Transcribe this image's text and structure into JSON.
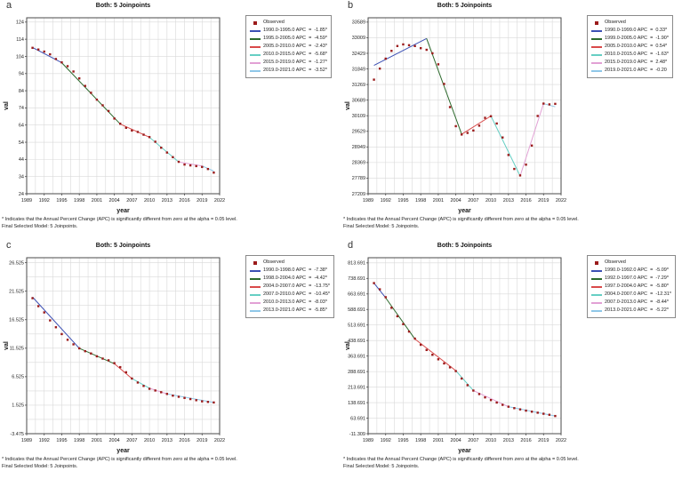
{
  "colors": {
    "observed_marker": "#9b1b1b",
    "segment_palette": [
      "#3c50b4",
      "#2d6a2d",
      "#d94a4a",
      "#66cfc4",
      "#e2a1d5",
      "#8fc7e8"
    ],
    "grid": "#d9d9d9",
    "plot_border": "#4a4a4a",
    "tick_text": "#222222"
  },
  "chart_data": [
    {
      "type": "line",
      "panel_letter": "a",
      "title": "Both: 5 Joinpoints",
      "xlabel": "year",
      "ylabel": "val",
      "legend_observed_label": "Observed",
      "footnotes": [
        "* Indicates that the Annual Percent Change (APC) is significantly different from zero at the alpha = 0.05 level.",
        "Final Selected Model: 5 Joinpoints."
      ],
      "x_ticks": [
        1989,
        1992,
        1995,
        1998,
        2001,
        2004,
        2007,
        2010,
        2013,
        2016,
        2019,
        2022
      ],
      "y_ticks": [
        24,
        34,
        44,
        54,
        64,
        74,
        84,
        94,
        104,
        114,
        124
      ],
      "xlim": [
        1989,
        2022
      ],
      "ylim": [
        24,
        126.5
      ],
      "x_grid_step": 1.5,
      "x": [
        1990,
        1991,
        1992,
        1993,
        1994,
        1995,
        1996,
        1997,
        1998,
        1999,
        2000,
        2001,
        2002,
        2003,
        2004,
        2005,
        2006,
        2007,
        2008,
        2009,
        2010,
        2011,
        2012,
        2013,
        2014,
        2015,
        2016,
        2017,
        2018,
        2019,
        2020,
        2021
      ],
      "observed": [
        109.0,
        108.0,
        106.8,
        105.2,
        102.5,
        100.5,
        98.3,
        95.2,
        91.2,
        86.8,
        82.8,
        78.8,
        75.5,
        72.2,
        67.8,
        64.8,
        62.4,
        60.8,
        60.0,
        58.4,
        57.0,
        54.3,
        50.8,
        48.0,
        45.3,
        42.6,
        41.0,
        40.5,
        40.1,
        39.6,
        38.4,
        36.3
      ],
      "segments": [
        {
          "label": "1990.0-1995.0 APC  =  -1.85*",
          "color": "#3c50b4",
          "x": [
            1990,
            1995
          ],
          "y": [
            109.2,
            100.3
          ]
        },
        {
          "label": "1995.0-2005.0 APC  =  -4.59*",
          "color": "#2d6a2d",
          "x": [
            1995,
            2005
          ],
          "y": [
            100.3,
            64.6
          ]
        },
        {
          "label": "2005.0-2010.0 APC  =  -2.43*",
          "color": "#d94a4a",
          "x": [
            2005,
            2010
          ],
          "y": [
            64.6,
            56.9
          ]
        },
        {
          "label": "2010.0-2015.0 APC  =  -5.68*",
          "color": "#66cfc4",
          "x": [
            2010,
            2015
          ],
          "y": [
            56.9,
            42.5
          ]
        },
        {
          "label": "2015.0-2019.0 APC  =  -1.27*",
          "color": "#e2a1d5",
          "x": [
            2015,
            2019
          ],
          "y": [
            42.5,
            40.2
          ]
        },
        {
          "label": "2019.0-2021.0 APC  =  -3.52*",
          "color": "#8fc7e8",
          "x": [
            2019,
            2021
          ],
          "y": [
            40.2,
            37.2
          ]
        }
      ]
    },
    {
      "type": "line",
      "panel_letter": "b",
      "title": "Both: 5 Joinpoints",
      "xlabel": "year",
      "ylabel": "val",
      "legend_observed_label": "Observed",
      "footnotes": [
        "* Indicates that the Annual Percent Change (APC) is significantly different from zero at the alpha = 0.05 level.",
        "Final Selected Model: 5 Joinpoints."
      ],
      "x_ticks": [
        1989,
        1992,
        1995,
        1998,
        2001,
        2004,
        2007,
        2010,
        2013,
        2016,
        2019,
        2022
      ],
      "y_ticks": [
        27209,
        27789,
        28369,
        28949,
        29529,
        30109,
        30689,
        31269,
        31849,
        32429,
        33009,
        33589
      ],
      "xlim": [
        1989,
        2022
      ],
      "ylim": [
        27209,
        33750
      ],
      "x_grid_step": 1.5,
      "x": [
        1990,
        1991,
        1992,
        1993,
        1994,
        1995,
        1996,
        1997,
        1998,
        1999,
        2000,
        2001,
        2002,
        2003,
        2004,
        2005,
        2006,
        2007,
        2008,
        2009,
        2010,
        2011,
        2012,
        2013,
        2014,
        2015,
        2016,
        2017,
        2018,
        2019,
        2020,
        2021
      ],
      "observed": [
        31450,
        31860,
        32230,
        32520,
        32700,
        32760,
        32730,
        32700,
        32620,
        32560,
        32430,
        32020,
        31290,
        30430,
        29720,
        29410,
        29470,
        29560,
        29740,
        30030,
        30090,
        29820,
        29300,
        28650,
        28130,
        27890,
        28290,
        29000,
        30100,
        30560,
        30530,
        30550
      ],
      "segments": [
        {
          "label": "1990.0-1999.0 APC  =  0.33*",
          "color": "#3c50b4",
          "x": [
            1990,
            1999
          ],
          "y": [
            31980,
            32980
          ]
        },
        {
          "label": "1999.0-2005.0 APC  =  -1.90*",
          "color": "#2d6a2d",
          "x": [
            1999,
            2005
          ],
          "y": [
            32980,
            29420
          ]
        },
        {
          "label": "2005.0-2010.0 APC  =  0.54*",
          "color": "#d94a4a",
          "x": [
            2005,
            2010
          ],
          "y": [
            29420,
            30100
          ]
        },
        {
          "label": "2010.0-2015.0 APC  =  -1.63*",
          "color": "#66cfc4",
          "x": [
            2010,
            2015
          ],
          "y": [
            30100,
            27870
          ]
        },
        {
          "label": "2015.0-2019.0 APC  =  2.48*",
          "color": "#e2a1d5",
          "x": [
            2015,
            2019
          ],
          "y": [
            27870,
            30560
          ]
        },
        {
          "label": "2019.0-2021.0 APC  =  -0.20",
          "color": "#8fc7e8",
          "x": [
            2019,
            2021
          ],
          "y": [
            30560,
            30440
          ]
        }
      ]
    },
    {
      "type": "line",
      "panel_letter": "c",
      "title": "Both: 5 Joinpoints",
      "xlabel": "year",
      "ylabel": "val",
      "legend_observed_label": "Observed",
      "footnotes": [
        "* Indicates that the Annual Percent Change (APC) is significantly different from zero at the alpha = 0.05 level.",
        "Final Selected Model: 5 Joinpoints."
      ],
      "x_ticks": [
        1989,
        1992,
        1995,
        1998,
        2001,
        2004,
        2007,
        2010,
        2013,
        2016,
        2019,
        2022
      ],
      "y_ticks": [
        -3.475,
        1.525,
        6.525,
        11.525,
        16.525,
        21.525,
        26.525
      ],
      "xlim": [
        1989,
        2022
      ],
      "ylim": [
        -3.475,
        27.4
      ],
      "x_grid_step": 1.5,
      "y_minor_step": 2.5,
      "x": [
        1990,
        1991,
        1992,
        1993,
        1994,
        1995,
        1996,
        1997,
        1998,
        1999,
        2000,
        2001,
        2002,
        2003,
        2004,
        2005,
        2006,
        2007,
        2008,
        2009,
        2010,
        2011,
        2012,
        2013,
        2014,
        2015,
        2016,
        2017,
        2018,
        2019,
        2020,
        2021
      ],
      "observed": [
        20.3,
        18.9,
        17.8,
        16.4,
        15.2,
        14.0,
        13.0,
        12.2,
        11.5,
        11.0,
        10.6,
        10.1,
        9.7,
        9.4,
        8.9,
        8.2,
        7.3,
        6.2,
        5.5,
        4.9,
        4.4,
        4.1,
        3.8,
        3.5,
        3.2,
        3.0,
        2.8,
        2.6,
        2.4,
        2.2,
        2.1,
        2.0
      ],
      "segments": [
        {
          "label": "1990.0-1998.0 APC  =  -7.38*",
          "color": "#3c50b4",
          "x": [
            1990,
            1998
          ],
          "y": [
            20.5,
            11.5
          ]
        },
        {
          "label": "1998.0-2004.0 APC  =  -4.42*",
          "color": "#2d6a2d",
          "x": [
            1998,
            2004
          ],
          "y": [
            11.5,
            8.8
          ]
        },
        {
          "label": "2004.0-2007.0 APC  =  -13.75*",
          "color": "#d94a4a",
          "x": [
            2004,
            2007
          ],
          "y": [
            8.8,
            6.2
          ]
        },
        {
          "label": "2007.0-2010.0 APC  =  -10.45*",
          "color": "#66cfc4",
          "x": [
            2007,
            2010
          ],
          "y": [
            6.2,
            4.5
          ]
        },
        {
          "label": "2010.0-2013.0 APC  =  -8.03*",
          "color": "#e2a1d5",
          "x": [
            2010,
            2013
          ],
          "y": [
            4.5,
            3.5
          ]
        },
        {
          "label": "2013.0-2021.0 APC  =  -5.85*",
          "color": "#8fc7e8",
          "x": [
            2013,
            2021
          ],
          "y": [
            3.5,
            2.0
          ]
        }
      ]
    },
    {
      "type": "line",
      "panel_letter": "d",
      "title": "Both: 5 Joinpoints",
      "xlabel": "year",
      "ylabel": "val",
      "legend_observed_label": "Observed",
      "footnotes": [
        "* Indicates that the Annual Percent Change (APC) is significantly different from zero at the alpha = 0.05 level.",
        "Final Selected Model: 5 Joinpoints."
      ],
      "x_ticks": [
        1989,
        1992,
        1995,
        1998,
        2001,
        2004,
        2007,
        2010,
        2013,
        2016,
        2019,
        2022
      ],
      "y_ticks": [
        -11.309,
        63.691,
        138.691,
        213.691,
        288.691,
        363.691,
        438.691,
        513.691,
        588.691,
        663.691,
        738.691,
        813.691
      ],
      "xlim": [
        1989,
        2022
      ],
      "ylim": [
        -11.309,
        838.7
      ],
      "x_grid_step": 1.5,
      "x": [
        1990,
        1991,
        1992,
        1993,
        1994,
        1995,
        1996,
        1997,
        1998,
        1999,
        2000,
        2001,
        2002,
        2003,
        2004,
        2005,
        2006,
        2007,
        2008,
        2009,
        2010,
        2011,
        2012,
        2013,
        2014,
        2015,
        2016,
        2017,
        2018,
        2019,
        2020,
        2021
      ],
      "observed": [
        716,
        686,
        648,
        597,
        556,
        518,
        482,
        448,
        418,
        393,
        370,
        348,
        328,
        309,
        291,
        255,
        223,
        197,
        180,
        164,
        151,
        139,
        128,
        119,
        112,
        106,
        100,
        95,
        90,
        85,
        80,
        74
      ],
      "segments": [
        {
          "label": "1990.0-1992.0 APC  =  -5.09*",
          "color": "#3c50b4",
          "x": [
            1990,
            1992
          ],
          "y": [
            716,
            645
          ]
        },
        {
          "label": "1992.0-1997.0 APC  =  -7.29*",
          "color": "#2d6a2d",
          "x": [
            1992,
            1997
          ],
          "y": [
            645,
            446
          ]
        },
        {
          "label": "1997.0-2004.0 APC  =  -5.80*",
          "color": "#d94a4a",
          "x": [
            1997,
            2004
          ],
          "y": [
            446,
            293
          ]
        },
        {
          "label": "2004.0-2007.0 APC  =  -12.31*",
          "color": "#66cfc4",
          "x": [
            2004,
            2007
          ],
          "y": [
            293,
            197
          ]
        },
        {
          "label": "2007.0-2013.0 APC  =  -8.44*",
          "color": "#e2a1d5",
          "x": [
            2007,
            2013
          ],
          "y": [
            197,
            119
          ]
        },
        {
          "label": "2013.0-2021.0 APC  =  -5.22*",
          "color": "#8fc7e8",
          "x": [
            2013,
            2021
          ],
          "y": [
            119,
            74
          ]
        }
      ]
    }
  ]
}
